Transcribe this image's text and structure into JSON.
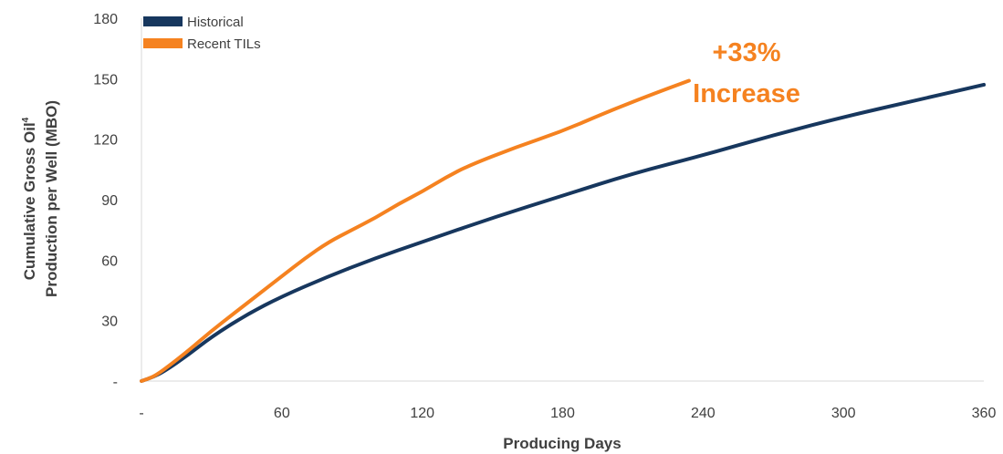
{
  "chart_data": {
    "type": "line",
    "xlabel": "Producing Days",
    "ylabel_line1": "Cumulative Gross Oil",
    "ylabel_superscript": "4",
    "ylabel_line2": "Production per Well (MBO)",
    "xlim": [
      0,
      360
    ],
    "ylim": [
      0,
      180
    ],
    "x_ticks": [
      0,
      60,
      120,
      180,
      240,
      300,
      360
    ],
    "x_tick_labels": [
      "-",
      "60",
      "120",
      "180",
      "240",
      "300",
      "360"
    ],
    "y_ticks": [
      0,
      30,
      60,
      90,
      120,
      150,
      180
    ],
    "y_tick_labels": [
      "-",
      "30",
      "60",
      "90",
      "120",
      "150",
      "180"
    ],
    "grid": false,
    "legend_position": "top-left",
    "series": [
      {
        "name": "Historical",
        "color": "#17375e",
        "x": [
          0,
          5,
          10,
          20,
          30,
          45,
          60,
          80,
          100,
          120,
          150,
          180,
          210,
          240,
          270,
          300,
          330,
          360
        ],
        "y": [
          0,
          2,
          5,
          13,
          22,
          33,
          42,
          52,
          61,
          69,
          81,
          92,
          103,
          112,
          122,
          131,
          139,
          147
        ]
      },
      {
        "name": "Recent TILs",
        "color": "#f58220",
        "x": [
          0,
          5,
          10,
          20,
          30,
          40,
          50,
          60,
          70,
          80,
          90,
          100,
          110,
          120,
          130,
          140,
          160,
          180,
          200,
          220,
          234
        ],
        "y": [
          0,
          2,
          6,
          15,
          25,
          34,
          43,
          52,
          61,
          69,
          75,
          81,
          88,
          94,
          101,
          107,
          116,
          124,
          134,
          143,
          149
        ]
      }
    ],
    "annotations": [
      {
        "text": "+33%",
        "color": "#f58220"
      },
      {
        "text": "Increase",
        "color": "#f58220"
      }
    ]
  }
}
